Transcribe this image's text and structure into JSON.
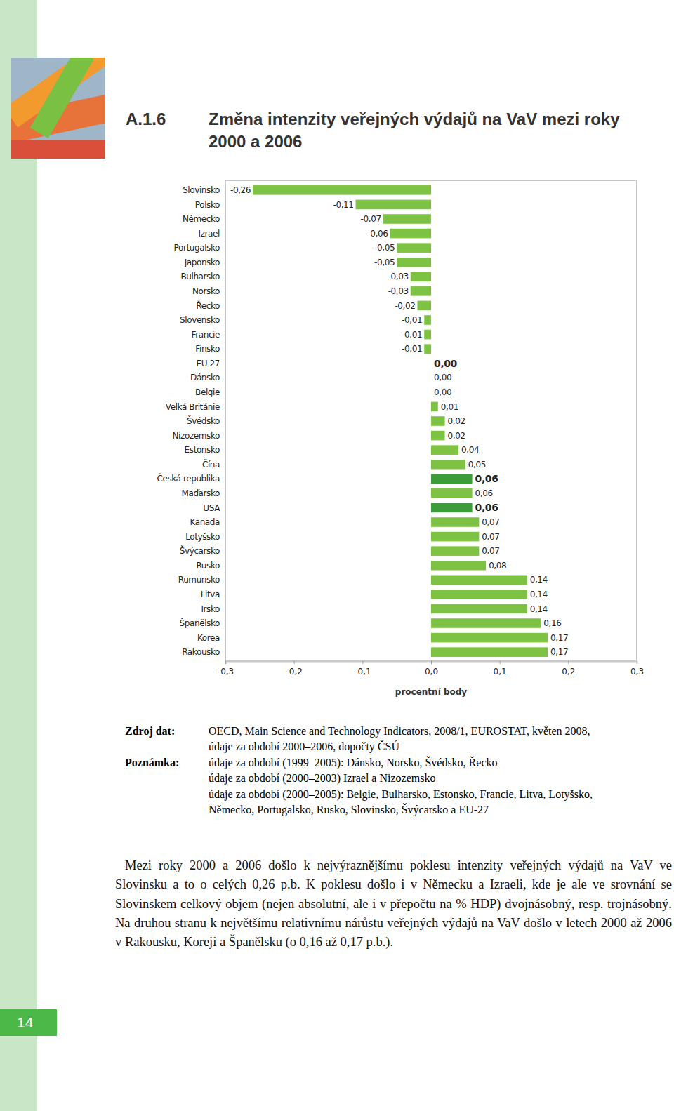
{
  "header": {
    "number": "A.1.6",
    "title_lines": [
      "Změna intenzity veřejných výdajů na VaV mezi roky",
      "2000 a 2006"
    ]
  },
  "chart_data": {
    "type": "bar",
    "orientation": "horizontal",
    "data_labels": true,
    "categories": [
      "Slovinsko",
      "Polsko",
      "Německo",
      "Izrael",
      "Portugalsko",
      "Japonsko",
      "Bulharsko",
      "Norsko",
      "Řecko",
      "Slovensko",
      "Francie",
      "Finsko",
      "EU 27",
      "Dánsko",
      "Belgie",
      "Velká Británie",
      "Švédsko",
      "Nizozemsko",
      "Estonsko",
      "Čína",
      "Česká republika",
      "Maďarsko",
      "USA",
      "Kanada",
      "Lotyšsko",
      "Švýcarsko",
      "Rusko",
      "Rumunsko",
      "Litva",
      "Irsko",
      "Španělsko",
      "Korea",
      "Rakousko"
    ],
    "values": [
      -0.26,
      -0.11,
      -0.07,
      -0.06,
      -0.05,
      -0.05,
      -0.03,
      -0.03,
      -0.02,
      -0.01,
      -0.01,
      -0.01,
      0.0,
      0.0,
      0.0,
      0.01,
      0.02,
      0.02,
      0.04,
      0.05,
      0.06,
      0.06,
      0.06,
      0.07,
      0.07,
      0.07,
      0.08,
      0.14,
      0.14,
      0.14,
      0.16,
      0.17,
      0.17
    ],
    "value_labels": [
      "-0,26",
      "-0,11",
      "-0,07",
      "-0,06",
      "-0,05",
      "-0,05",
      "-0,03",
      "-0,03",
      "-0,02",
      "-0,01",
      "-0,01",
      "-0,01",
      "0,00",
      "0,00",
      "0,00",
      "0,01",
      "0,02",
      "0,02",
      "0,04",
      "0,05",
      "0,06",
      "0,06",
      "0,06",
      "0,07",
      "0,07",
      "0,07",
      "0,08",
      "0,14",
      "0,14",
      "0,14",
      "0,16",
      "0,17",
      "0,17"
    ],
    "colors": [
      "#7dc243",
      "#7dc243",
      "#7dc243",
      "#7dc243",
      "#7dc243",
      "#7dc243",
      "#7dc243",
      "#7dc243",
      "#7dc243",
      "#7dc243",
      "#7dc243",
      "#7dc243",
      "#3a9d3a",
      "#7dc243",
      "#7dc243",
      "#7dc243",
      "#7dc243",
      "#7dc243",
      "#7dc243",
      "#7dc243",
      "#3a9d3a",
      "#7dc243",
      "#3a9d3a",
      "#7dc243",
      "#7dc243",
      "#7dc243",
      "#7dc243",
      "#7dc243",
      "#7dc243",
      "#7dc243",
      "#7dc243",
      "#7dc243",
      "#7dc243"
    ],
    "xlim": [
      -0.3,
      0.3
    ],
    "xticks": [
      {
        "value": -0.3,
        "label": "-0,3"
      },
      {
        "value": -0.2,
        "label": "-0,2"
      },
      {
        "value": -0.1,
        "label": "-0,1"
      },
      {
        "value": 0.0,
        "label": "0,0"
      },
      {
        "value": 0.1,
        "label": "0,1"
      },
      {
        "value": 0.2,
        "label": "0,2"
      },
      {
        "value": 0.3,
        "label": "0,3"
      }
    ],
    "x_label": "procentní body"
  },
  "source": {
    "label": "Zdroj dat:",
    "lines": [
      "OECD, Main Science and Technology Indicators, 2008/1, EUROSTAT, květen 2008,",
      "údaje za období 2000–2006, dopočty ČSÚ"
    ]
  },
  "note": {
    "label": "Poznámka:",
    "lines": [
      "údaje za období (1999–2005): Dánsko, Norsko, Švédsko, Řecko",
      "údaje za období (2000–2003) Izrael a Nizozemsko",
      "údaje za období (2000–2005): Belgie, Bulharsko, Estonsko, Francie, Litva, Lotyšsko,",
      "Německo, Portugalsko, Rusko, Slovinsko, Švýcarsko a EU-27"
    ]
  },
  "body": "Mezi roky 2000 a 2006 došlo k nejvýraznějšímu poklesu intenzity veřejných výdajů na VaV ve Slovinsku a to o celých 0,26 p.b. K poklesu došlo i v Německu a Izraeli, kde je ale ve srovnání se Slovinskem celkový objem (nejen absolutní, ale i v přepočtu na % HDP) dvojnásobný, resp. trojnásobný. Na druhou stranu k největšímu relativnímu nárůstu veřejných výdajů na VaV došlo v letech 2000 až 2006 v Rakousku, Koreji a Španělsku (o 0,16 až 0,17 p.b.).",
  "page_number": "14"
}
